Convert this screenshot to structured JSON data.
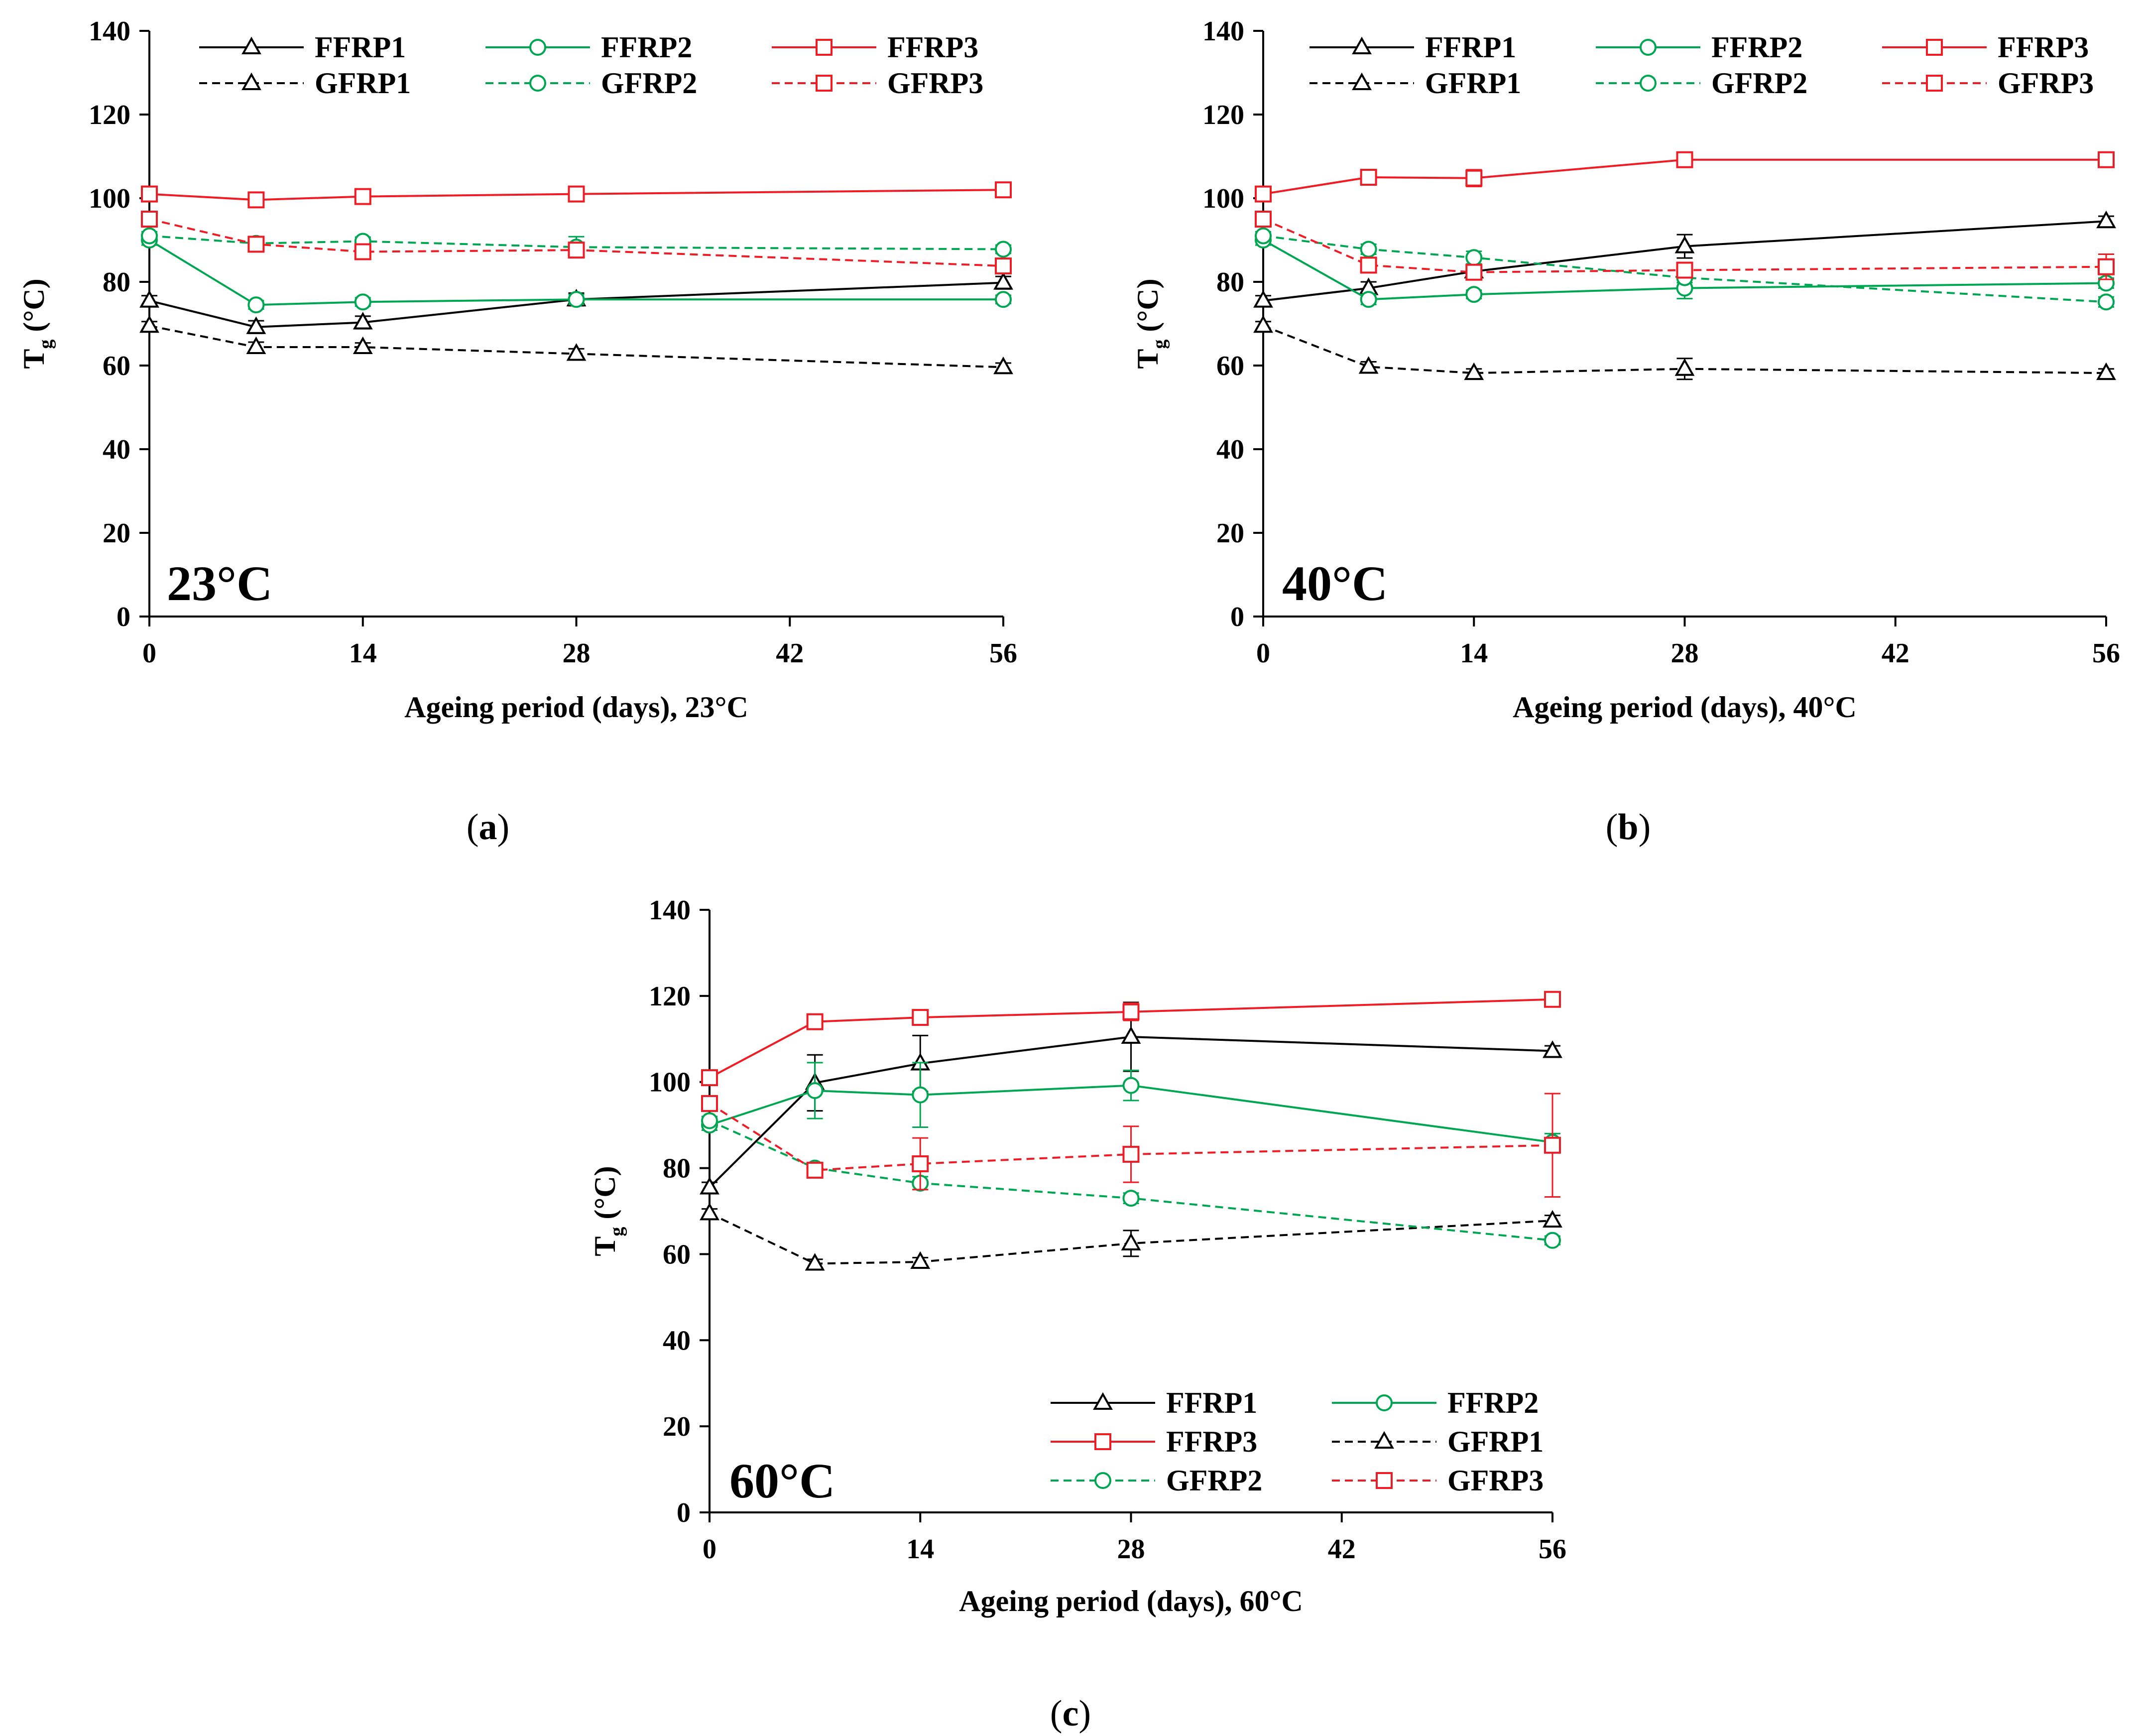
{
  "figure": {
    "captions": [
      {
        "text_open": "(",
        "letter": "a",
        "text_close": ")"
      },
      {
        "text_open": "(",
        "letter": "b",
        "text_close": ")"
      },
      {
        "text_open": "(",
        "letter": "c",
        "text_close": ")"
      }
    ],
    "series_styles": {
      "FFRP1": {
        "color": "#000000",
        "marker": "triangle",
        "dash": "solid"
      },
      "FFRP2": {
        "color": "#00a651",
        "marker": "circle",
        "dash": "solid"
      },
      "FFRP3": {
        "color": "#ee1c25",
        "marker": "square",
        "dash": "solid"
      },
      "GFRP1": {
        "color": "#000000",
        "marker": "triangle",
        "dash": "dashed"
      },
      "GFRP2": {
        "color": "#00a651",
        "marker": "circle",
        "dash": "dashed"
      },
      "GFRP3": {
        "color": "#ee1c25",
        "marker": "square",
        "dash": "dashed"
      }
    }
  },
  "chart_data": [
    {
      "type": "line",
      "panel": "a",
      "annotation": "23°C",
      "xlabel": "Ageing period (days), 23°C",
      "ylabel_main": "T",
      "ylabel_sub": "g",
      "ylabel_unit": " (°C)",
      "xlim": [
        0,
        56
      ],
      "ylim": [
        0,
        140
      ],
      "xticks": [
        0,
        14,
        28,
        42,
        56
      ],
      "yticks": [
        0,
        20,
        40,
        60,
        80,
        100,
        120,
        140
      ],
      "legend_position": "top",
      "legend_order": [
        "FFRP1",
        "FFRP2",
        "FFRP3",
        "GFRP1",
        "GFRP2",
        "GFRP3"
      ],
      "x": [
        0,
        7,
        14,
        28,
        56
      ],
      "series": [
        {
          "name": "FFRP1",
          "values": [
            75.5,
            69.2,
            70.3,
            75.8,
            79.8
          ],
          "errors": [
            1.2,
            1.5,
            1.5,
            1.5,
            1.5
          ]
        },
        {
          "name": "FFRP2",
          "values": [
            90.0,
            74.5,
            75.2,
            75.8,
            75.8
          ],
          "errors": [
            1.2,
            1.0,
            1.0,
            1.2,
            1.0
          ]
        },
        {
          "name": "FFRP3",
          "values": [
            101.0,
            99.6,
            100.4,
            101.0,
            102.0
          ],
          "errors": [
            1.0,
            1.8,
            1.0,
            1.0,
            1.5
          ]
        },
        {
          "name": "GFRP1",
          "values": [
            69.5,
            64.4,
            64.4,
            62.8,
            59.6
          ],
          "errors": [
            1.0,
            1.2,
            1.0,
            1.2,
            1.0
          ]
        },
        {
          "name": "GFRP2",
          "values": [
            91.0,
            89.2,
            89.7,
            88.3,
            87.8
          ],
          "errors": [
            1.0,
            1.0,
            1.0,
            2.5,
            1.0
          ]
        },
        {
          "name": "GFRP3",
          "values": [
            95.0,
            89.0,
            87.2,
            87.6,
            83.8
          ],
          "errors": [
            1.0,
            1.5,
            1.2,
            1.5,
            1.0
          ]
        }
      ]
    },
    {
      "type": "line",
      "panel": "b",
      "annotation": "40°C",
      "xlabel": "Ageing period (days), 40°C",
      "ylabel_main": "T",
      "ylabel_sub": "g",
      "ylabel_unit": " (°C)",
      "xlim": [
        0,
        56
      ],
      "ylim": [
        0,
        140
      ],
      "xticks": [
        0,
        14,
        28,
        42,
        56
      ],
      "yticks": [
        0,
        20,
        40,
        60,
        80,
        100,
        120,
        140
      ],
      "legend_position": "top",
      "legend_order": [
        "FFRP1",
        "FFRP2",
        "FFRP3",
        "GFRP1",
        "GFRP2",
        "GFRP3"
      ],
      "x": [
        0,
        7,
        14,
        28,
        56
      ],
      "series": [
        {
          "name": "FFRP1",
          "values": [
            75.5,
            78.5,
            82.5,
            88.5,
            94.5
          ],
          "errors": [
            1.2,
            1.5,
            1.5,
            2.8,
            1.2
          ]
        },
        {
          "name": "FFRP2",
          "values": [
            90.0,
            75.8,
            77.0,
            78.5,
            79.7
          ],
          "errors": [
            1.2,
            1.2,
            1.0,
            2.5,
            1.2
          ]
        },
        {
          "name": "FFRP3",
          "values": [
            101.0,
            105.0,
            104.8,
            109.2,
            109.2
          ],
          "errors": [
            1.0,
            1.5,
            2.0,
            1.2,
            1.2
          ]
        },
        {
          "name": "GFRP1",
          "values": [
            69.5,
            59.7,
            58.2,
            59.2,
            58.2
          ],
          "errors": [
            1.0,
            1.2,
            1.0,
            2.5,
            1.0
          ]
        },
        {
          "name": "GFRP2",
          "values": [
            91.0,
            87.8,
            85.8,
            81.0,
            75.2
          ],
          "errors": [
            1.0,
            1.2,
            1.5,
            1.2,
            1.2
          ]
        },
        {
          "name": "GFRP3",
          "values": [
            95.0,
            84.0,
            82.3,
            82.8,
            83.6
          ],
          "errors": [
            1.0,
            1.5,
            1.5,
            1.5,
            3.0
          ]
        }
      ]
    },
    {
      "type": "line",
      "panel": "c",
      "annotation": "60°C",
      "xlabel": "Ageing period (days), 60°C",
      "ylabel_main": "T",
      "ylabel_sub": "g",
      "ylabel_unit": " (°C)",
      "xlim": [
        0,
        56
      ],
      "ylim": [
        0,
        140
      ],
      "xticks": [
        0,
        14,
        28,
        42,
        56
      ],
      "yticks": [
        0,
        20,
        40,
        60,
        80,
        100,
        120,
        140
      ],
      "legend_position": "bottom-right",
      "legend_order": [
        "FFRP1",
        "FFRP2",
        "FFRP3",
        "GFRP1",
        "GFRP2",
        "GFRP3"
      ],
      "x": [
        0,
        7,
        14,
        28,
        56
      ],
      "series": [
        {
          "name": "FFRP1",
          "values": [
            75.5,
            99.8,
            104.3,
            110.5,
            107.2
          ],
          "errors": [
            1.2,
            6.5,
            6.5,
            8.0,
            1.2
          ]
        },
        {
          "name": "FFRP2",
          "values": [
            90.0,
            98.0,
            97.0,
            99.2,
            86.0
          ],
          "errors": [
            1.2,
            6.5,
            7.5,
            3.5,
            2.0
          ]
        },
        {
          "name": "FFRP3",
          "values": [
            101.0,
            114.0,
            115.0,
            116.3,
            119.2
          ],
          "errors": [
            1.0,
            1.2,
            1.2,
            2.0,
            1.0
          ]
        },
        {
          "name": "GFRP1",
          "values": [
            69.5,
            57.8,
            58.2,
            62.5,
            67.8
          ],
          "errors": [
            1.0,
            1.0,
            1.0,
            3.0,
            1.2
          ]
        },
        {
          "name": "GFRP2",
          "values": [
            91.0,
            80.0,
            76.5,
            73.0,
            63.2
          ],
          "errors": [
            1.0,
            1.2,
            1.5,
            1.2,
            1.0
          ]
        },
        {
          "name": "GFRP3",
          "values": [
            95.0,
            79.5,
            81.0,
            83.2,
            85.3
          ],
          "errors": [
            1.0,
            1.2,
            6.0,
            6.5,
            12.0
          ]
        }
      ]
    }
  ]
}
